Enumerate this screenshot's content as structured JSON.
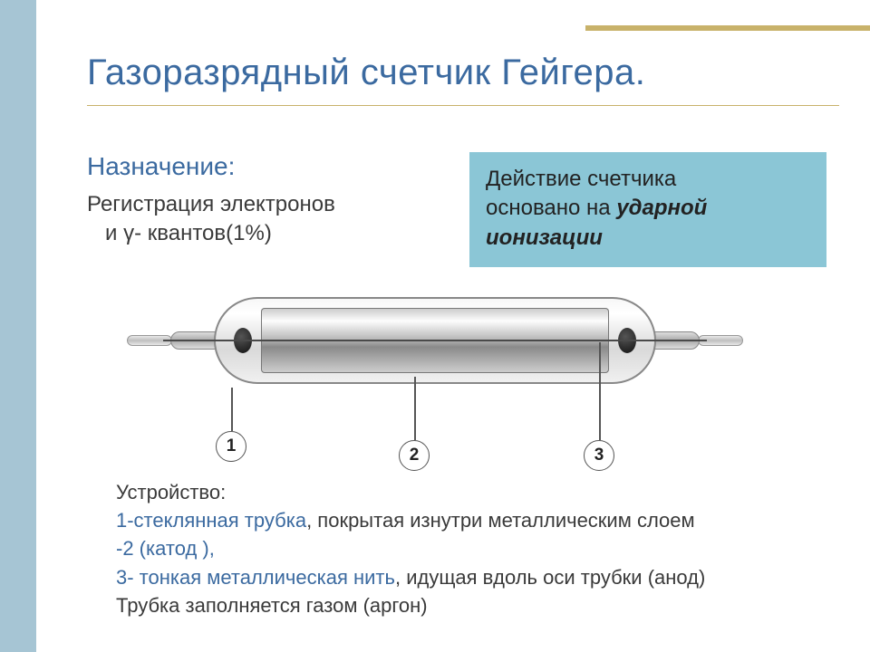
{
  "colors": {
    "sidebar_bg": "#a6c5d4",
    "title": "#3b6aa0",
    "rule_top": "#c8b26a",
    "rule_bottom": "#c8b26a",
    "subtitle": "#3b6aa0",
    "body_text": "#3a3a3a",
    "principle_bg": "#8bc6d6",
    "principle_text": "#222222",
    "blue_highlight": "#3b6aa0"
  },
  "title": "Газоразрядный счетчик Гейгера.",
  "subtitle": "Назначение:",
  "purpose_line1": "Регистрация электронов",
  "purpose_line2": "и γ- квантов(1%)",
  "principle_plain_a": "Действие счетчика",
  "principle_plain_b": "основано на ",
  "principle_em": "ударной ионизации",
  "callouts": {
    "n1": "1",
    "n2": "2",
    "n3": "3"
  },
  "device": {
    "heading": "Устройство:",
    "l1_blue": "1-стеклянная трубка",
    "l1_rest": ", покрытая изнутри металлическим слоем",
    "l2_blue": "-2 (катод ),",
    "l3_blue": "3- тонкая металлическая нить",
    "l3_rest": ", идущая вдоль оси трубки (анод)",
    "l4": "Трубка заполняется газом (аргон)"
  }
}
